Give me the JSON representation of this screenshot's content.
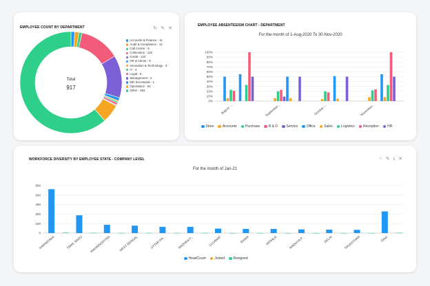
{
  "cards": {
    "dept": {
      "title": "EMPLOYEE COUNT BY DEPARTMENT",
      "total_label": "Total",
      "total_value": "917"
    },
    "absent": {
      "title": "EMPLOYEE ABSENTEEISM CHART - DEPARTMENT",
      "subtitle": "For the month of 1-Aug-2020 To 30-Nov-2020"
    },
    "diversity": {
      "title": "WORKFORCE DIVERSITY BY EMPLOYEE STATE - COMPANY LEVEL",
      "subtitle": "For the month of Jan-21"
    }
  },
  "icons": {
    "refresh": "↻",
    "edit": "✎",
    "close": "✕",
    "circle": "○",
    "download": "⭳"
  },
  "chart_data": [
    {
      "type": "pie",
      "title": "EMPLOYEE COUNT BY DEPARTMENT",
      "donut": true,
      "slices": [
        {
          "label": "Accounts & Finance - 11",
          "value": 11,
          "color": "#2196f3"
        },
        {
          "label": "Audit & Compliance - 12",
          "value": 12,
          "color": "#f5a623"
        },
        {
          "label": "Call Centre - 9",
          "value": 9,
          "color": "#2ecf8a"
        },
        {
          "label": "Collections - 118",
          "value": 118,
          "color": "#f25c7a"
        },
        {
          "label": "Credit - 124",
          "value": 124,
          "color": "#7a5fd6"
        },
        {
          "label": "HR & Admin - 9",
          "value": 9,
          "color": "#2196f3"
        },
        {
          "label": "Innovation & Technology - 3",
          "value": 3,
          "color": "#f5a623"
        },
        {
          "label": "IT - 4",
          "value": 4,
          "color": "#2ecf8a"
        },
        {
          "label": "Legal - 6",
          "value": 6,
          "color": "#f25c7a"
        },
        {
          "label": "Management - 2",
          "value": 2,
          "color": "#7a5fd6"
        },
        {
          "label": "MD Secretariat - 1",
          "value": 1,
          "color": "#2196f3"
        },
        {
          "label": "Operations - 54",
          "value": 54,
          "color": "#f5a623"
        },
        {
          "label": "Other - 564",
          "value": 564,
          "color": "#2ecf8a"
        }
      ]
    },
    {
      "type": "bar",
      "subtitle": "For the month of 1-Aug-2020 To 30-Nov-2020",
      "categories": [
        "August -...",
        "September...",
        "October -...",
        "November..."
      ],
      "ylim": [
        0,
        100
      ],
      "yticks": [
        "0%",
        "10%",
        "20%",
        "30%",
        "40%",
        "50%",
        "60%",
        "70%",
        "80%",
        "90%",
        "100%"
      ],
      "series": [
        {
          "name": "Store",
          "color": "#2196f3",
          "values": [
            50,
            0,
            0,
            0
          ]
        },
        {
          "name": "Accounts",
          "color": "#f5a623",
          "values": [
            6,
            6,
            4,
            8
          ]
        },
        {
          "name": "Purchase",
          "color": "#2ecf8a",
          "values": [
            23,
            20,
            20,
            22
          ]
        },
        {
          "name": "R & D",
          "color": "#f25c7a",
          "values": [
            21,
            23,
            18,
            24
          ]
        },
        {
          "name": "Service",
          "color": "#7a5fd6",
          "values": [
            0,
            9,
            0,
            0
          ]
        },
        {
          "name": "Office",
          "color": "#2196f3",
          "values": [
            55,
            50,
            51,
            55
          ]
        },
        {
          "name": "Sales",
          "color": "#f5a623",
          "values": [
            0,
            6,
            5,
            8
          ]
        },
        {
          "name": "Logistics",
          "color": "#2ecf8a",
          "values": [
            33,
            0,
            0,
            33
          ]
        },
        {
          "name": "Reception",
          "color": "#f25c7a",
          "values": [
            100,
            0,
            0,
            100
          ]
        },
        {
          "name": "HR",
          "color": "#7a5fd6",
          "values": [
            50,
            50,
            50,
            50
          ]
        }
      ]
    },
    {
      "type": "bar",
      "subtitle": "For the month of Jan-21",
      "categories": [
        "KARNATAKA",
        "TAMIL NADU",
        "MAHARASHTRA",
        "WEST BENGAL",
        "UTTAR PR...",
        "ANDHRA P...",
        "GUJARAT",
        "BIHAR",
        "KERALA",
        "MADHYA P...",
        "DELHI",
        "RAJASTHAN",
        "Other"
      ],
      "ylim": [
        0,
        800
      ],
      "yticks": [
        "0",
        "160",
        "320",
        "480",
        "640",
        "800"
      ],
      "series": [
        {
          "name": "HeadCount",
          "color": "#2196f3",
          "values": [
            740,
            300,
            140,
            125,
            105,
            105,
            75,
            70,
            70,
            62,
            58,
            55,
            365
          ]
        },
        {
          "name": "Joined",
          "color": "#f5a623",
          "values": [
            0,
            0,
            0,
            0,
            0,
            0,
            0,
            0,
            0,
            0,
            0,
            0,
            0
          ]
        },
        {
          "name": "Resigned",
          "color": "#2ecf8a",
          "values": [
            8,
            3,
            2,
            2,
            2,
            2,
            1,
            1,
            1,
            1,
            1,
            1,
            6
          ]
        }
      ]
    }
  ]
}
